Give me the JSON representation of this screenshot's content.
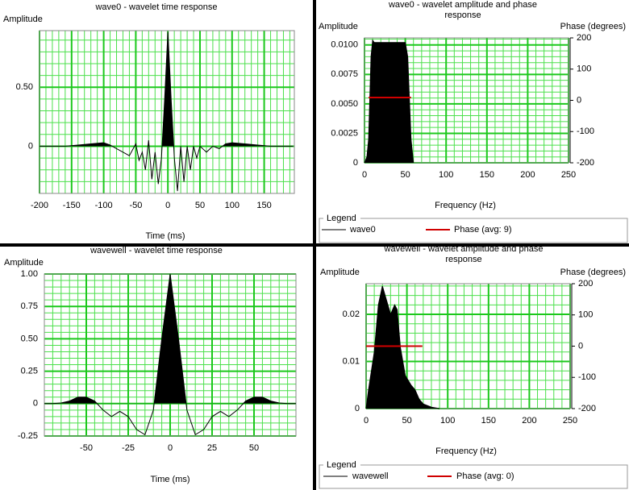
{
  "chart_data": [
    {
      "type": "line",
      "title": "wave0 - wavelet time response",
      "y_label": "Amplitude",
      "x_label": "Time (ms)",
      "xlim": [
        -200,
        197
      ],
      "ylim": [
        -0.4,
        0.98
      ],
      "xticks": [
        -200,
        -150,
        -100,
        -50,
        0,
        50,
        100,
        150
      ],
      "yticks": [
        0,
        {
          "value": 0.5,
          "label": "0.50"
        }
      ],
      "grid": true,
      "series": [
        {
          "color": "#000000",
          "filled": true,
          "x": [
            -200,
            -180,
            -160,
            -140,
            -120,
            -100,
            -90,
            -80,
            -70,
            -60,
            -50,
            -45,
            -40,
            -35,
            -30,
            -25,
            -20,
            -15,
            -10,
            -5,
            0,
            5,
            10,
            15,
            20,
            25,
            30,
            35,
            40,
            45,
            50,
            60,
            70,
            80,
            90,
            100,
            120,
            140,
            160,
            180,
            195
          ],
          "values": [
            0,
            0,
            0,
            0.01,
            0.02,
            0.03,
            0.01,
            -0.02,
            -0.05,
            -0.08,
            0.02,
            -0.12,
            -0.05,
            -0.2,
            0.05,
            -0.28,
            -0.05,
            -0.32,
            -0.1,
            0.4,
            0.97,
            0.4,
            -0.1,
            -0.38,
            0,
            -0.3,
            0,
            -0.2,
            0,
            -0.1,
            0,
            -0.05,
            0,
            -0.02,
            0.02,
            0.03,
            0.02,
            0.01,
            0,
            0,
            0
          ]
        }
      ]
    },
    {
      "type": "line",
      "title": "wave0 - wavelet amplitude and phase response",
      "y_label": "Amplitude",
      "y2_label": "Phase (degrees)",
      "x_label": "Frequency (Hz)",
      "xlim": [
        0,
        250
      ],
      "ylim": [
        0,
        0.0106
      ],
      "y2lim": [
        -200,
        200
      ],
      "xticks": [
        0,
        50,
        100,
        150,
        200,
        250
      ],
      "yticks": [
        0,
        0.0025,
        {
          "value": 0.005,
          "label": "0.0050"
        },
        0.0075,
        {
          "value": 0.01,
          "label": "0.0100"
        }
      ],
      "y2ticks": [
        -200,
        -100,
        0,
        100,
        200
      ],
      "grid": true,
      "legend_title": "Legend",
      "series": [
        {
          "name": "wave0",
          "color": "#000000",
          "filled": true,
          "x": [
            0,
            3,
            5,
            8,
            10,
            12,
            50,
            53,
            57,
            60
          ],
          "values": [
            0,
            0.0005,
            0.002,
            0.009,
            0.0104,
            0.0102,
            0.0102,
            0.009,
            0.002,
            0
          ]
        },
        {
          "name": "Phase (avg: 9)",
          "color": "#d00000",
          "axis": "y2",
          "x": [
            5,
            57
          ],
          "values": [
            9,
            9
          ]
        }
      ]
    },
    {
      "type": "line",
      "title": "wavewell - wavelet time response",
      "y_label": "Amplitude",
      "x_label": "Time (ms)",
      "xlim": [
        -75,
        75
      ],
      "ylim": [
        -0.25,
        1
      ],
      "xticks": [
        -50,
        -25,
        0,
        25,
        50
      ],
      "yticks": [
        -0.25,
        0,
        0.25,
        {
          "value": 0.5,
          "label": "0.50"
        },
        0.75,
        {
          "value": 1,
          "label": "1.00"
        }
      ],
      "grid": true,
      "series": [
        {
          "color": "#000000",
          "filled": true,
          "x": [
            -75,
            -70,
            -65,
            -60,
            -55,
            -50,
            -45,
            -40,
            -35,
            -30,
            -25,
            -20,
            -15,
            -10,
            -5,
            0,
            5,
            10,
            15,
            20,
            25,
            30,
            35,
            40,
            45,
            50,
            55,
            60,
            65,
            70,
            75
          ],
          "values": [
            0,
            0,
            0.005,
            0.02,
            0.05,
            0.05,
            0.02,
            -0.05,
            -0.1,
            -0.06,
            -0.1,
            -0.2,
            -0.24,
            -0.05,
            0.5,
            1,
            0.5,
            -0.05,
            -0.24,
            -0.2,
            -0.1,
            -0.06,
            -0.1,
            -0.05,
            0.02,
            0.05,
            0.05,
            0.02,
            0.005,
            0,
            0
          ]
        }
      ]
    },
    {
      "type": "line",
      "title": "wavewell - wavelet amplitude and phase response",
      "y_label": "Amplitude",
      "y2_label": "Phase (degrees)",
      "x_label": "Frequency (Hz)",
      "xlim": [
        0,
        250
      ],
      "ylim": [
        0,
        0.0265
      ],
      "y2lim": [
        -200,
        200
      ],
      "xticks": [
        0,
        50,
        100,
        150,
        200,
        250
      ],
      "yticks": [
        0,
        0.01,
        0.02
      ],
      "y2ticks": [
        -200,
        -100,
        0,
        100,
        200
      ],
      "grid": true,
      "legend_title": "Legend",
      "series": [
        {
          "name": "wavewell",
          "color": "#000000",
          "filled": true,
          "x": [
            0,
            3,
            10,
            15,
            20,
            25,
            30,
            35,
            38,
            42,
            48,
            55,
            60,
            65,
            70,
            80,
            90
          ],
          "values": [
            0,
            0.004,
            0.012,
            0.022,
            0.026,
            0.023,
            0.02,
            0.022,
            0.021,
            0.013,
            0.007,
            0.005,
            0.004,
            0.002,
            0.001,
            0.0003,
            0
          ]
        },
        {
          "name": "Phase (avg: 0)",
          "color": "#d00000",
          "axis": "y2",
          "x": [
            0,
            69
          ],
          "values": [
            0,
            0
          ]
        }
      ]
    }
  ]
}
